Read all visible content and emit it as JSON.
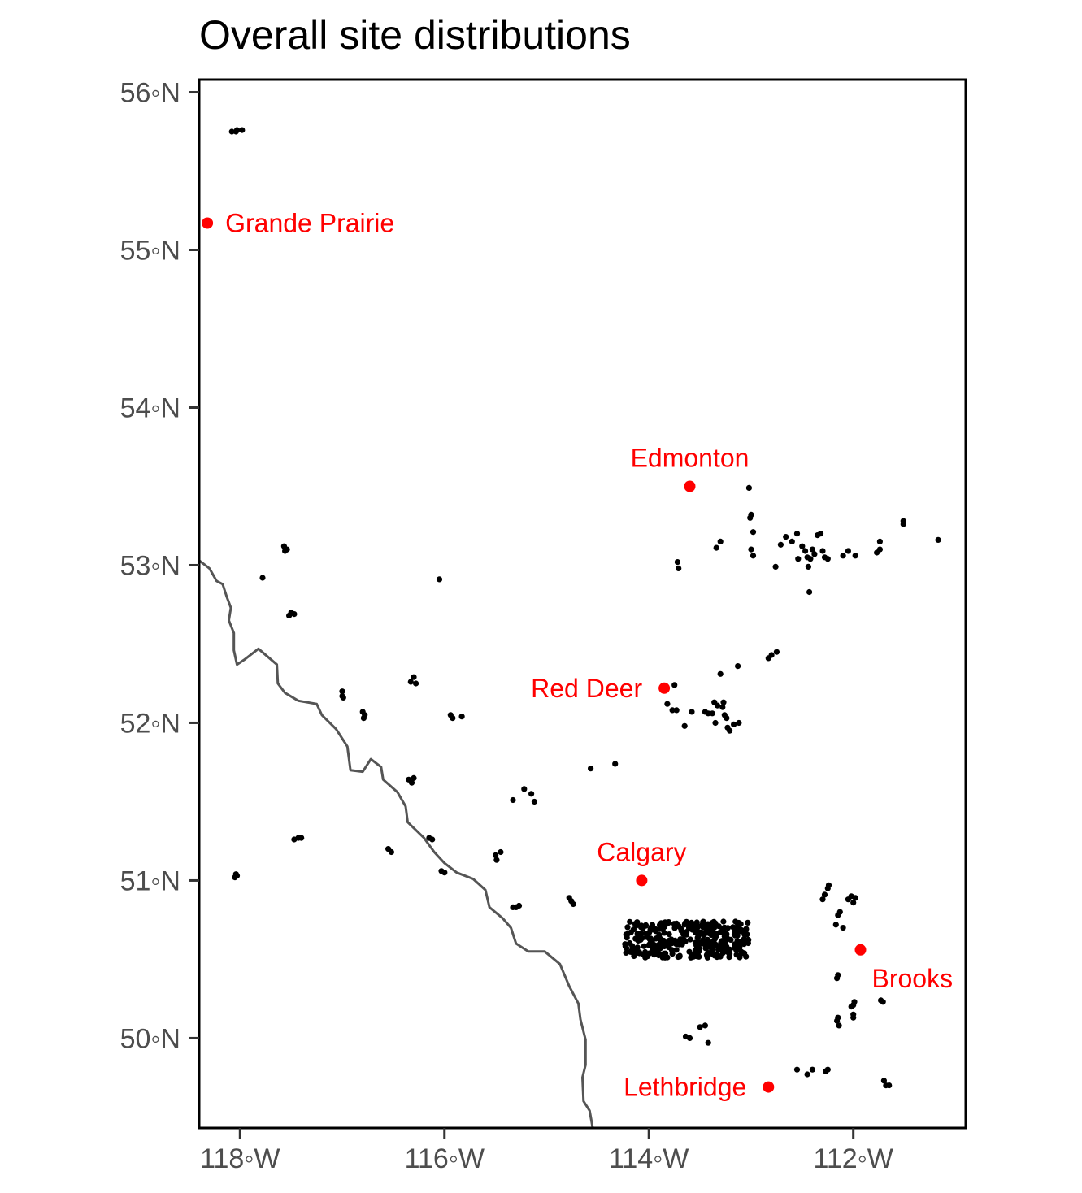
{
  "title": "Overall site distributions",
  "y_tick_labels": [
    {
      "lat": 56,
      "label": "56◦N"
    },
    {
      "lat": 55,
      "label": "55◦N"
    },
    {
      "lat": 54,
      "label": "54◦N"
    },
    {
      "lat": 53,
      "label": "53◦N"
    },
    {
      "lat": 52,
      "label": "52◦N"
    },
    {
      "lat": 51,
      "label": "51◦N"
    },
    {
      "lat": 50,
      "label": "50◦N"
    }
  ],
  "x_tick_labels": [
    {
      "lon": -118,
      "label": "118◦W"
    },
    {
      "lon": -116,
      "label": "116◦W"
    },
    {
      "lon": -114,
      "label": "114◦W"
    },
    {
      "lon": -112,
      "label": "112◦W"
    }
  ],
  "colors": {
    "site_point": "#000000",
    "city_point": "#ff0000",
    "city_label": "#ff0000",
    "border": "#555555",
    "frame": "#000000",
    "tick_label": "#4d4d4d"
  },
  "chart_data": {
    "type": "scatter",
    "title": "Overall site distributions",
    "xlabel": "",
    "ylabel": "",
    "xlim": [
      -118.4,
      -110.9
    ],
    "ylim": [
      49.43,
      56.08
    ],
    "grid": false,
    "cities": [
      {
        "name": "Grande Prairie",
        "lon": -118.32,
        "lat": 55.17,
        "label_side": "right"
      },
      {
        "name": "Edmonton",
        "lon": -113.6,
        "lat": 53.5,
        "label_side": "above"
      },
      {
        "name": "Red Deer",
        "lon": -113.85,
        "lat": 52.22,
        "label_side": "left"
      },
      {
        "name": "Calgary",
        "lon": -114.07,
        "lat": 51.0,
        "label_side": "above"
      },
      {
        "name": "Brooks",
        "lon": -111.93,
        "lat": 50.56,
        "label_side": "below-right"
      },
      {
        "name": "Lethbridge",
        "lon": -112.83,
        "lat": 49.69,
        "label_side": "left"
      }
    ],
    "border": [
      [
        -118.4,
        53.03
      ],
      [
        -118.3,
        52.98
      ],
      [
        -118.23,
        52.9
      ],
      [
        -118.17,
        52.88
      ],
      [
        -118.13,
        52.8
      ],
      [
        -118.09,
        52.73
      ],
      [
        -118.11,
        52.65
      ],
      [
        -118.06,
        52.57
      ],
      [
        -118.06,
        52.46
      ],
      [
        -118.03,
        52.37
      ],
      [
        -117.96,
        52.4
      ],
      [
        -117.82,
        52.47
      ],
      [
        -117.64,
        52.37
      ],
      [
        -117.63,
        52.25
      ],
      [
        -117.56,
        52.19
      ],
      [
        -117.43,
        52.14
      ],
      [
        -117.25,
        52.12
      ],
      [
        -117.2,
        52.05
      ],
      [
        -117.06,
        51.96
      ],
      [
        -116.95,
        51.85
      ],
      [
        -116.92,
        51.7
      ],
      [
        -116.8,
        51.69
      ],
      [
        -116.72,
        51.77
      ],
      [
        -116.62,
        51.72
      ],
      [
        -116.6,
        51.64
      ],
      [
        -116.46,
        51.56
      ],
      [
        -116.38,
        51.47
      ],
      [
        -116.36,
        51.37
      ],
      [
        -116.2,
        51.27
      ],
      [
        -116.1,
        51.18
      ],
      [
        -116.0,
        51.11
      ],
      [
        -115.88,
        51.05
      ],
      [
        -115.72,
        51.01
      ],
      [
        -115.6,
        50.94
      ],
      [
        -115.56,
        50.83
      ],
      [
        -115.43,
        50.76
      ],
      [
        -115.35,
        50.7
      ],
      [
        -115.3,
        50.6
      ],
      [
        -115.18,
        50.55
      ],
      [
        -115.02,
        50.55
      ],
      [
        -114.87,
        50.47
      ],
      [
        -114.78,
        50.33
      ],
      [
        -114.69,
        50.22
      ],
      [
        -114.67,
        50.12
      ],
      [
        -114.62,
        49.99
      ],
      [
        -114.62,
        49.83
      ],
      [
        -114.65,
        49.75
      ],
      [
        -114.64,
        49.6
      ],
      [
        -114.58,
        49.54
      ],
      [
        -114.55,
        49.43
      ]
    ],
    "sites": [
      [
        -118.08,
        55.75
      ],
      [
        -118.03,
        55.76
      ],
      [
        -117.98,
        55.76
      ],
      [
        -118.04,
        55.75
      ],
      [
        -117.57,
        53.12
      ],
      [
        -117.56,
        53.09
      ],
      [
        -117.54,
        53.1
      ],
      [
        -117.78,
        52.92
      ],
      [
        -116.05,
        52.91
      ],
      [
        -117.5,
        52.7
      ],
      [
        -117.52,
        52.68
      ],
      [
        -117.47,
        52.69
      ],
      [
        -117.0,
        52.2
      ],
      [
        -117.0,
        52.17
      ],
      [
        -116.99,
        52.16
      ],
      [
        -116.8,
        52.07
      ],
      [
        -116.78,
        52.05
      ],
      [
        -116.79,
        52.03
      ],
      [
        -116.33,
        52.26
      ],
      [
        -116.3,
        52.29
      ],
      [
        -116.28,
        52.25
      ],
      [
        -115.94,
        52.05
      ],
      [
        -115.92,
        52.03
      ],
      [
        -115.83,
        52.04
      ],
      [
        -116.35,
        51.64
      ],
      [
        -116.3,
        51.65
      ],
      [
        -116.32,
        51.62
      ],
      [
        -115.22,
        51.58
      ],
      [
        -115.15,
        51.55
      ],
      [
        -115.12,
        51.5
      ],
      [
        -115.33,
        51.51
      ],
      [
        -114.57,
        51.71
      ],
      [
        -114.33,
        51.74
      ],
      [
        -117.43,
        51.27
      ],
      [
        -117.4,
        51.27
      ],
      [
        -117.47,
        51.26
      ],
      [
        -118.04,
        51.04
      ],
      [
        -118.03,
        51.03
      ],
      [
        -118.05,
        51.02
      ],
      [
        -116.55,
        51.2
      ],
      [
        -116.52,
        51.18
      ],
      [
        -116.15,
        51.27
      ],
      [
        -116.12,
        51.26
      ],
      [
        -116.03,
        51.06
      ],
      [
        -116.0,
        51.05
      ],
      [
        -115.5,
        51.16
      ],
      [
        -115.45,
        51.18
      ],
      [
        -115.49,
        51.13
      ],
      [
        -115.33,
        50.83
      ],
      [
        -115.27,
        50.84
      ],
      [
        -115.3,
        50.83
      ],
      [
        -114.78,
        50.89
      ],
      [
        -114.74,
        50.85
      ],
      [
        -114.76,
        50.87
      ],
      [
        -113.72,
        53.02
      ],
      [
        -113.71,
        52.98
      ],
      [
        -113.02,
        53.49
      ],
      [
        -113.0,
        53.32
      ],
      [
        -113.01,
        53.3
      ],
      [
        -112.98,
        53.21
      ],
      [
        -113.3,
        53.15
      ],
      [
        -113.34,
        53.11
      ],
      [
        -113.0,
        53.1
      ],
      [
        -112.98,
        53.06
      ],
      [
        -112.76,
        52.99
      ],
      [
        -112.71,
        53.13
      ],
      [
        -112.66,
        53.18
      ],
      [
        -112.6,
        53.15
      ],
      [
        -112.55,
        53.2
      ],
      [
        -112.5,
        53.12
      ],
      [
        -112.47,
        53.09
      ],
      [
        -112.45,
        53.05
      ],
      [
        -112.42,
        53.04
      ],
      [
        -112.4,
        53.1
      ],
      [
        -112.38,
        53.07
      ],
      [
        -112.35,
        53.19
      ],
      [
        -112.32,
        53.2
      ],
      [
        -112.3,
        53.09
      ],
      [
        -112.25,
        53.04
      ],
      [
        -112.28,
        53.05
      ],
      [
        -112.44,
        52.99
      ],
      [
        -112.43,
        52.83
      ],
      [
        -112.54,
        53.04
      ],
      [
        -112.1,
        53.06
      ],
      [
        -112.05,
        53.09
      ],
      [
        -111.98,
        53.06
      ],
      [
        -111.77,
        53.08
      ],
      [
        -111.74,
        53.1
      ],
      [
        -111.74,
        53.15
      ],
      [
        -111.51,
        53.28
      ],
      [
        -111.51,
        53.26
      ],
      [
        -111.17,
        53.16
      ],
      [
        -113.3,
        52.31
      ],
      [
        -113.13,
        52.36
      ],
      [
        -112.8,
        52.43
      ],
      [
        -112.75,
        52.45
      ],
      [
        -112.83,
        52.41
      ],
      [
        -113.75,
        52.24
      ],
      [
        -113.82,
        52.12
      ],
      [
        -113.77,
        52.08
      ],
      [
        -113.73,
        52.08
      ],
      [
        -113.65,
        51.98
      ],
      [
        -113.58,
        52.07
      ],
      [
        -113.45,
        52.07
      ],
      [
        -113.38,
        52.06
      ],
      [
        -113.33,
        52.11
      ],
      [
        -113.36,
        52.13
      ],
      [
        -113.28,
        52.1
      ],
      [
        -113.27,
        52.13
      ],
      [
        -113.26,
        52.05
      ],
      [
        -113.35,
        52.0
      ],
      [
        -113.24,
        52.03
      ],
      [
        -113.23,
        51.97
      ],
      [
        -113.21,
        51.95
      ],
      [
        -113.17,
        51.99
      ],
      [
        -113.12,
        52.0
      ],
      [
        -113.42,
        52.06
      ],
      [
        -113.64,
        50.01
      ],
      [
        -113.6,
        50.0
      ],
      [
        -113.5,
        50.07
      ],
      [
        -113.45,
        50.08
      ],
      [
        -113.42,
        49.97
      ],
      [
        -112.55,
        49.8
      ],
      [
        -112.45,
        49.77
      ],
      [
        -112.4,
        49.8
      ],
      [
        -112.27,
        49.79
      ],
      [
        -112.25,
        49.8
      ],
      [
        -112.3,
        50.88
      ],
      [
        -112.28,
        50.91
      ],
      [
        -112.25,
        50.95
      ],
      [
        -112.24,
        50.97
      ],
      [
        -112.17,
        50.72
      ],
      [
        -112.15,
        50.78
      ],
      [
        -112.13,
        50.8
      ],
      [
        -112.1,
        50.7
      ],
      [
        -112.05,
        50.88
      ],
      [
        -112.02,
        50.9
      ],
      [
        -112.0,
        50.86
      ],
      [
        -111.98,
        50.89
      ],
      [
        -112.15,
        50.4
      ],
      [
        -112.16,
        50.38
      ],
      [
        -112.0,
        50.21
      ],
      [
        -111.99,
        50.23
      ],
      [
        -112.02,
        50.2
      ],
      [
        -112.0,
        50.15
      ],
      [
        -112.15,
        50.13
      ],
      [
        -112.14,
        50.08
      ],
      [
        -112.16,
        50.11
      ],
      [
        -112.0,
        50.13
      ],
      [
        -111.73,
        50.24
      ],
      [
        -111.71,
        50.23
      ],
      [
        -111.7,
        49.73
      ],
      [
        -111.68,
        49.7
      ],
      [
        -111.65,
        49.7
      ]
    ],
    "dense_cluster": {
      "lon_min": -114.24,
      "lon_max": -113.02,
      "lat_min": 50.51,
      "lat_max": 50.74,
      "count": 340
    }
  }
}
